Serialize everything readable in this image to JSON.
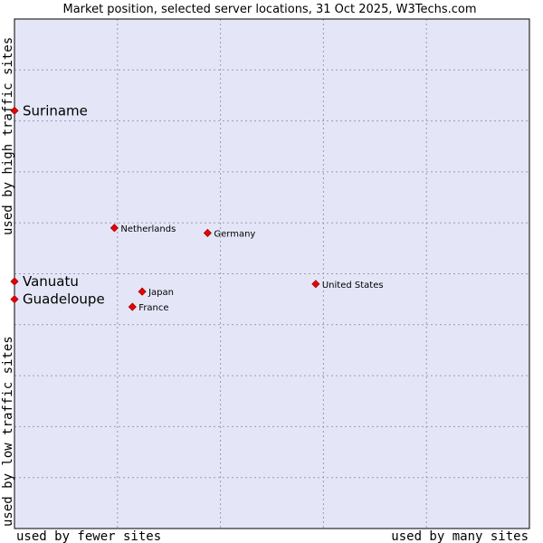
{
  "chart_data": {
    "type": "scatter",
    "title": "Market position, selected server locations, 31 Oct 2025, W3Techs.com",
    "xlabel_left": "used by fewer sites",
    "xlabel_right": "used by many sites",
    "ylabel_bottom": "used by low traffic sites",
    "ylabel_top": "used by high traffic sites",
    "xlim": [
      0,
      100
    ],
    "ylim": [
      0,
      100
    ],
    "grid": true,
    "colors": {
      "background": "#e4e6f8",
      "marker": "#ee0000",
      "marker_edge": "#990000",
      "frame": "#000000"
    },
    "points": [
      {
        "name": "Suriname",
        "x": 0,
        "y": 82,
        "label_size": "big"
      },
      {
        "name": "Netherlands",
        "x": 19.4,
        "y": 59,
        "label_size": "small"
      },
      {
        "name": "Germany",
        "x": 37.5,
        "y": 58,
        "label_size": "small"
      },
      {
        "name": "Vanuatu",
        "x": 0,
        "y": 48.5,
        "label_size": "big"
      },
      {
        "name": "United States",
        "x": 58.5,
        "y": 48,
        "label_size": "small"
      },
      {
        "name": "Japan",
        "x": 24.8,
        "y": 46.5,
        "label_size": "small"
      },
      {
        "name": "Guadeloupe",
        "x": 0,
        "y": 45,
        "label_size": "big"
      },
      {
        "name": "France",
        "x": 22.9,
        "y": 43.5,
        "label_size": "small"
      }
    ]
  }
}
